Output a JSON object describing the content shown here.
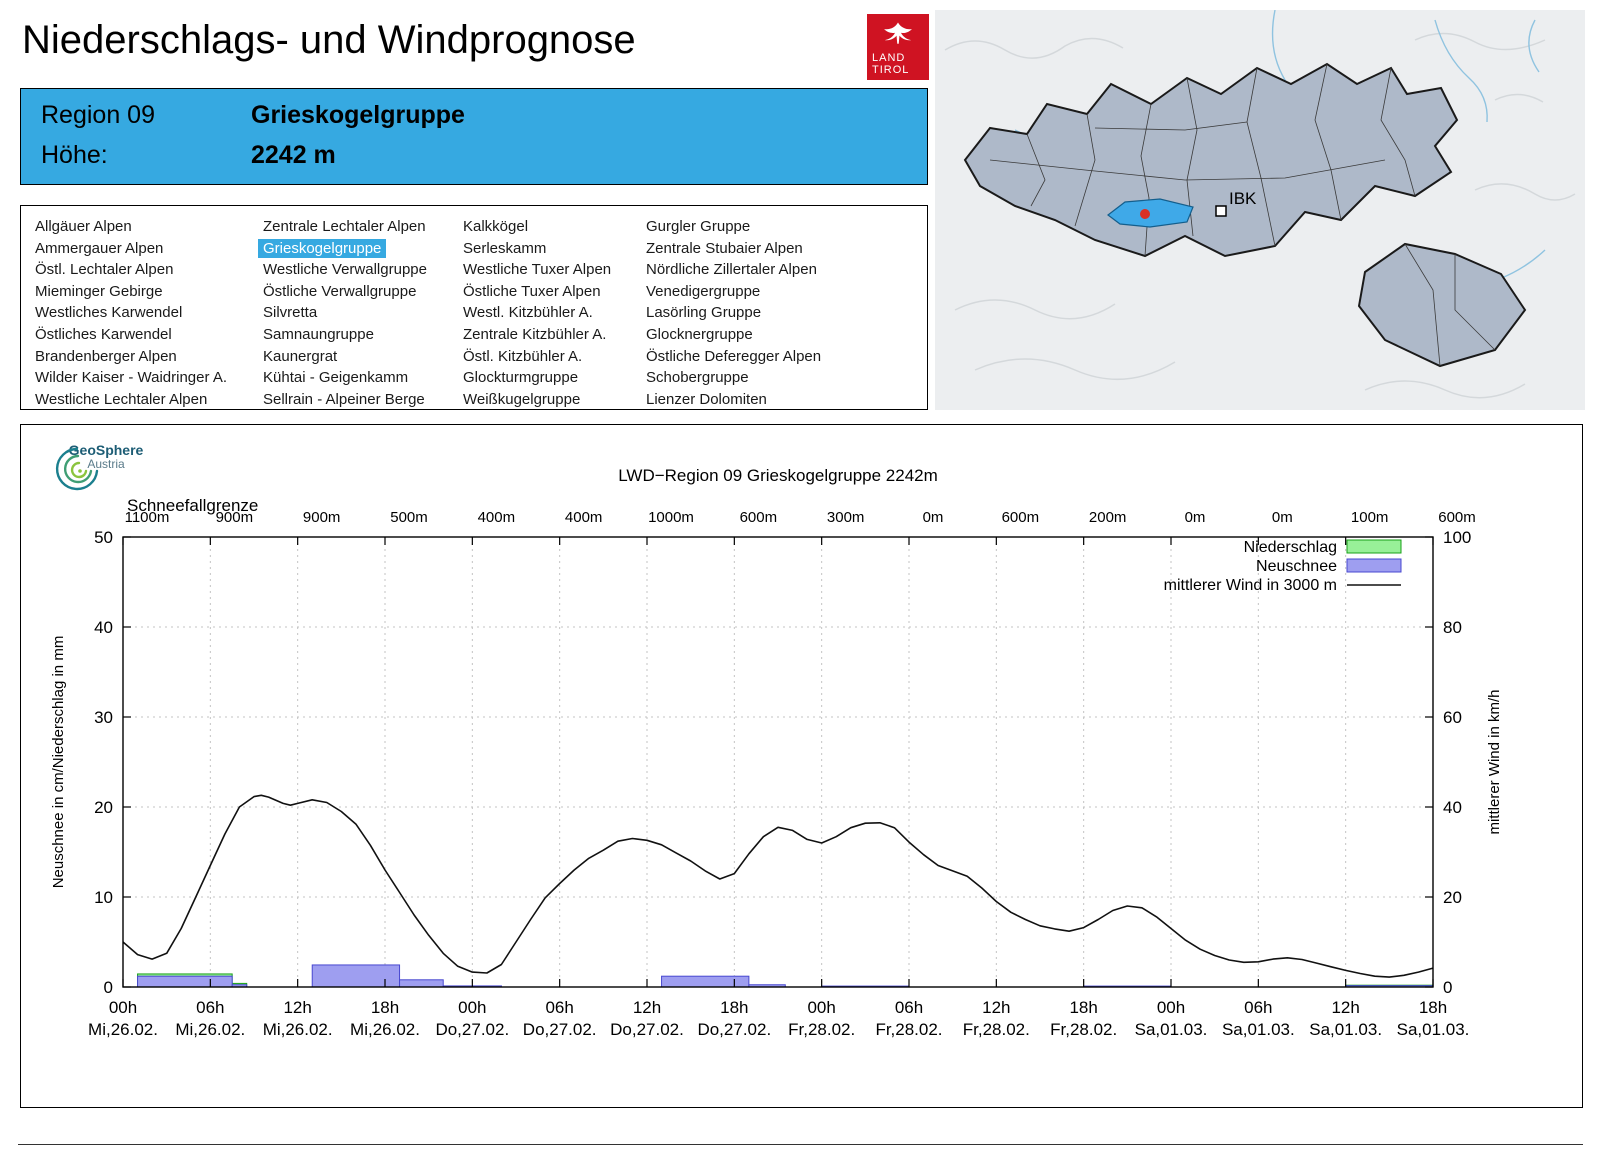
{
  "header": {
    "title": "Niederschlags- und Windprognose",
    "logo_line1": "LAND",
    "logo_line2": "TIROL"
  },
  "region_info": {
    "region_label": "Region 09",
    "region_name": "Grieskogelgruppe",
    "elevation_label": "Höhe:",
    "elevation_value": "2242 m"
  },
  "region_list": {
    "selected": "Grieskogelgruppe",
    "columns": [
      [
        "Allgäuer Alpen",
        "Ammergauer Alpen",
        "Östl. Lechtaler Alpen",
        "Mieminger Gebirge",
        "Westliches Karwendel",
        "Östliches Karwendel",
        "Brandenberger Alpen",
        "Wilder Kaiser - Waidringer A.",
        "Westliche Lechtaler Alpen"
      ],
      [
        "Zentrale Lechtaler Alpen",
        "Grieskogelgruppe",
        "Westliche Verwallgruppe",
        "Östliche Verwallgruppe",
        "Silvretta",
        "Samnaungruppe",
        "Kaunergrat",
        "Kühtai - Geigenkamm",
        "Sellrain - Alpeiner Berge"
      ],
      [
        "Kalkkögel",
        "Serleskamm",
        "Westliche Tuxer Alpen",
        "Östliche Tuxer Alpen",
        "Westl. Kitzbühler A.",
        "Zentrale Kitzbühler A.",
        "Östl. Kitzbühler A.",
        "Glockturmgruppe",
        "Weißkugelgruppe"
      ],
      [
        "Gurgler Gruppe",
        "Zentrale Stubaier Alpen",
        "Nördliche Zillertaler Alpen",
        "Venedigergruppe",
        "Lasörling Gruppe",
        "Glocknergruppe",
        "Östliche Deferegger Alpen",
        "Schobergruppe",
        "Lienzer Dolomiten"
      ]
    ]
  },
  "map": {
    "ibk_label": "IBK",
    "highlight_color": "#3fa9e8"
  },
  "geosphere": {
    "name": "GeoSphere",
    "country": "Austria"
  },
  "chart_data": {
    "type": "bar+line",
    "title": "LWD−Region 09 Grieskogelgruppe 2242m",
    "snowline_label": "Schneefallgrenze",
    "snowline_values": [
      "1100m",
      "900m",
      "900m",
      "500m",
      "400m",
      "400m",
      "1000m",
      "600m",
      "300m",
      "0m",
      "600m",
      "200m",
      "0m",
      "0m",
      "100m",
      "600m"
    ],
    "ylabel_left": "Neuschnee in cm/Niederschlag in mm",
    "ylabel_right": "mittlerer Wind in km/h",
    "ylim_left": [
      0,
      50
    ],
    "ylim_right": [
      0,
      100
    ],
    "yticks_left": [
      0,
      10,
      20,
      30,
      40,
      50
    ],
    "yticks_right": [
      0,
      20,
      40,
      60,
      80,
      100
    ],
    "hours_span": 90,
    "x_ticks": [
      {
        "hour": "00h",
        "date": "Mi,26.02."
      },
      {
        "hour": "06h",
        "date": "Mi,26.02."
      },
      {
        "hour": "12h",
        "date": "Mi,26.02."
      },
      {
        "hour": "18h",
        "date": "Mi,26.02."
      },
      {
        "hour": "00h",
        "date": "Do,27.02."
      },
      {
        "hour": "06h",
        "date": "Do,27.02."
      },
      {
        "hour": "12h",
        "date": "Do,27.02."
      },
      {
        "hour": "18h",
        "date": "Do,27.02."
      },
      {
        "hour": "00h",
        "date": "Fr,28.02."
      },
      {
        "hour": "06h",
        "date": "Fr,28.02."
      },
      {
        "hour": "12h",
        "date": "Fr,28.02."
      },
      {
        "hour": "18h",
        "date": "Fr,28.02."
      },
      {
        "hour": "00h",
        "date": "Sa,01.03."
      },
      {
        "hour": "06h",
        "date": "Sa,01.03."
      },
      {
        "hour": "12h",
        "date": "Sa,01.03."
      },
      {
        "hour": "18h",
        "date": "Sa,01.03."
      }
    ],
    "legend": [
      {
        "label": "Niederschlag",
        "type": "box",
        "fill": "#98f098",
        "stroke": "#18a018"
      },
      {
        "label": "Neuschnee",
        "type": "box",
        "fill": "#9e9ef0",
        "stroke": "#4848d0"
      },
      {
        "label": "mittlerer Wind in 3000 m",
        "type": "line",
        "stroke": "#111111"
      }
    ],
    "niederschlag_bars": [
      {
        "start": 1,
        "end": 7.5,
        "value": 1.45
      },
      {
        "start": 7.5,
        "end": 8.5,
        "value": 0.4
      },
      {
        "start": 84,
        "end": 90,
        "value": 0.2
      }
    ],
    "neuschnee_bars": [
      {
        "start": 1,
        "end": 7.5,
        "value": 1.2
      },
      {
        "start": 7.5,
        "end": 8.5,
        "value": 0.25
      },
      {
        "start": 13,
        "end": 19,
        "value": 2.45
      },
      {
        "start": 19,
        "end": 22,
        "value": 0.8
      },
      {
        "start": 22,
        "end": 26,
        "value": 0.12
      },
      {
        "start": 37,
        "end": 43,
        "value": 1.2
      },
      {
        "start": 43,
        "end": 45.5,
        "value": 0.25
      },
      {
        "start": 48,
        "end": 54,
        "value": 0.1
      },
      {
        "start": 66,
        "end": 72,
        "value": 0.1
      },
      {
        "start": 84,
        "end": 90,
        "value": 0.15
      }
    ],
    "wind_line_kmh": [
      [
        0,
        10
      ],
      [
        1,
        7.2
      ],
      [
        2,
        6.2
      ],
      [
        3,
        7.5
      ],
      [
        4,
        13
      ],
      [
        5,
        20
      ],
      [
        6,
        27
      ],
      [
        7,
        34
      ],
      [
        8,
        40
      ],
      [
        9,
        42.3
      ],
      [
        9.5,
        42.6
      ],
      [
        10,
        42.2
      ],
      [
        11,
        40.8
      ],
      [
        11.5,
        40.4
      ],
      [
        12,
        40.8
      ],
      [
        13,
        41.6
      ],
      [
        14,
        41
      ],
      [
        15,
        39
      ],
      [
        16,
        36.2
      ],
      [
        17,
        31.5
      ],
      [
        18,
        26
      ],
      [
        19,
        21
      ],
      [
        20,
        16
      ],
      [
        21,
        11.5
      ],
      [
        22,
        7.5
      ],
      [
        23,
        4.6
      ],
      [
        24,
        3.3
      ],
      [
        25,
        3.1
      ],
      [
        26,
        5
      ],
      [
        27,
        10
      ],
      [
        28,
        15
      ],
      [
        29,
        19.8
      ],
      [
        30,
        23
      ],
      [
        31,
        26
      ],
      [
        32,
        28.6
      ],
      [
        33,
        30.4
      ],
      [
        34,
        32.4
      ],
      [
        35,
        33
      ],
      [
        36,
        32.6
      ],
      [
        37,
        31.6
      ],
      [
        38,
        29.8
      ],
      [
        39,
        28
      ],
      [
        40,
        25.8
      ],
      [
        41,
        24
      ],
      [
        42,
        25.2
      ],
      [
        43,
        29.6
      ],
      [
        44,
        33.4
      ],
      [
        45,
        35.5
      ],
      [
        46,
        34.8
      ],
      [
        47,
        32.8
      ],
      [
        48,
        32
      ],
      [
        49,
        33.4
      ],
      [
        50,
        35.4
      ],
      [
        51,
        36.4
      ],
      [
        52,
        36.5
      ],
      [
        53,
        35.4
      ],
      [
        54,
        32.2
      ],
      [
        55,
        29.4
      ],
      [
        56,
        27
      ],
      [
        57,
        25.8
      ],
      [
        58,
        24.6
      ],
      [
        59,
        22
      ],
      [
        60,
        19
      ],
      [
        61,
        16.6
      ],
      [
        62,
        15
      ],
      [
        63,
        13.6
      ],
      [
        64,
        12.9
      ],
      [
        65,
        12.4
      ],
      [
        66,
        13.2
      ],
      [
        67,
        15
      ],
      [
        68,
        17
      ],
      [
        69,
        18
      ],
      [
        70,
        17.6
      ],
      [
        71,
        15.6
      ],
      [
        72,
        13
      ],
      [
        73,
        10.4
      ],
      [
        74,
        8.4
      ],
      [
        75,
        7
      ],
      [
        76,
        6
      ],
      [
        77,
        5.5
      ],
      [
        78,
        5.6
      ],
      [
        79,
        6.2
      ],
      [
        80,
        6.5
      ],
      [
        81,
        6.1
      ],
      [
        82,
        5.3
      ],
      [
        83,
        4.5
      ],
      [
        84,
        3.7
      ],
      [
        85,
        3
      ],
      [
        86,
        2.4
      ],
      [
        87,
        2.2
      ],
      [
        88,
        2.6
      ],
      [
        89,
        3.3
      ],
      [
        90,
        4.2
      ]
    ]
  }
}
